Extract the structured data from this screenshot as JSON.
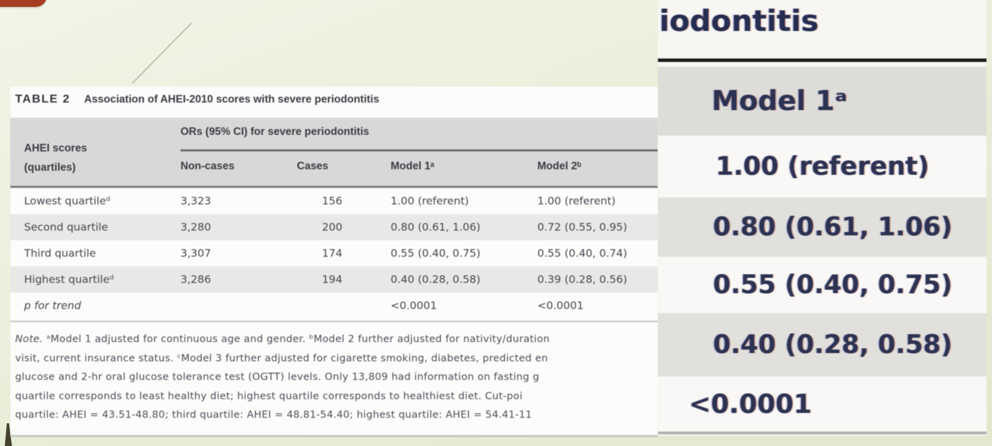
{
  "colors": {
    "background_green": "#eaeeda",
    "accent_red": "#a63d22",
    "table_header_gray": "#d8d8d8",
    "row_shade_gray": "#e8e8e6",
    "panel_text_navy": "#2d3252"
  },
  "table": {
    "title_label": "TABLE 2",
    "title_text": "Association of AHEI-2010 scores with severe periodontitis",
    "row_header_line1": "AHEI scores",
    "row_header_line2": "(quartiles)",
    "col_group_header": "ORs (95% CI) for severe periodontitis",
    "columns": [
      "Non-cases",
      "Cases",
      "Model 1ᵃ",
      "Model 2ᵇ"
    ],
    "rows": [
      {
        "label": "Lowest quartileᵈ",
        "non_cases": "3,323",
        "cases": "156",
        "model1": "1.00 (referent)",
        "model2": "1.00 (referent)"
      },
      {
        "label": "Second quartile",
        "non_cases": "3,280",
        "cases": "200",
        "model1": "0.80 (0.61, 1.06)",
        "model2": "0.72 (0.55, 0.95)"
      },
      {
        "label": "Third quartile",
        "non_cases": "3,307",
        "cases": "174",
        "model1": "0.55 (0.40, 0.75)",
        "model2": "0.55 (0.40, 0.74)"
      },
      {
        "label": "Highest quartileᵈ",
        "non_cases": "3,286",
        "cases": "194",
        "model1": "0.40 (0.28, 0.58)",
        "model2": "0.39 (0.28, 0.56)"
      },
      {
        "label": "p for trend",
        "non_cases": "",
        "cases": "",
        "model1": "<0.0001",
        "model2": "<0.0001"
      }
    ],
    "note_prefix": "Note.",
    "note_lines": [
      "ᵃModel 1 adjusted for continuous age and gender. ᵇModel 2 further adjusted for nativity/duration",
      "visit, current insurance status. ᶜModel 3 further adjusted for cigarette smoking, diabetes, predicted en",
      "glucose and 2-hr oral glucose tolerance test (OGTT) levels. Only 13,809 had information on fasting g",
      "quartile corresponds to least healthy diet; highest quartile corresponds to healthiest diet. Cut-poi",
      "quartile: AHEI = 43.51-48.80; third quartile: AHEI = 48.81-54.40; highest quartile: AHEI = 54.41-11"
    ]
  },
  "zoom_panel": {
    "header_fragment": "iodontitis",
    "column_header": "Model 1ᵃ",
    "values": [
      "1.00 (referent)",
      "0.80 (0.61, 1.06)",
      "0.55 (0.40, 0.75)",
      "0.40 (0.28, 0.58)"
    ],
    "p_value": "<0.0001"
  }
}
